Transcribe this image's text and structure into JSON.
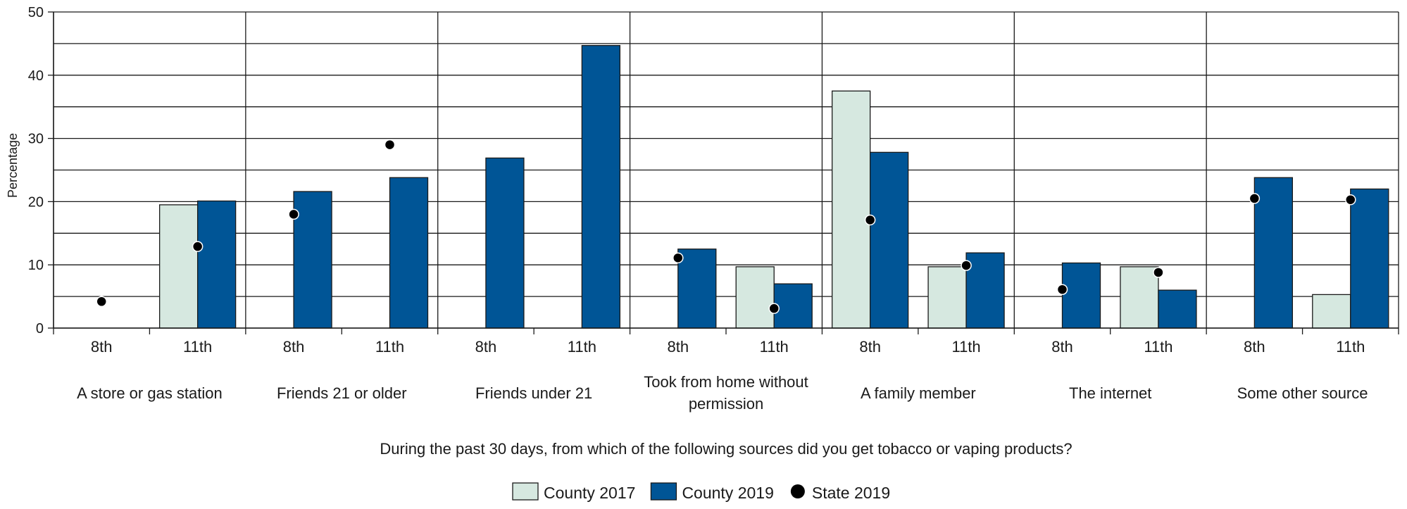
{
  "chart_data": {
    "type": "bar",
    "ylabel": "Percentage",
    "xlabel": "During the past 30 days, from which of the following sources did you get tobacco or vaping products?",
    "ylim": [
      0,
      50
    ],
    "yticks": [
      0,
      10,
      20,
      30,
      40,
      50
    ],
    "grid": true,
    "legend_position": "bottom-center",
    "groups": [
      "A store or gas station",
      "Friends 21 or older",
      "Friends under 21",
      "Took from home without permission",
      "A family member",
      "The internet",
      "Some other source"
    ],
    "subcategories": [
      "8th",
      "11th"
    ],
    "series": [
      {
        "name": "County 2017",
        "kind": "bar",
        "color": "#d6e8e0",
        "values": [
          [
            null,
            19.5
          ],
          [
            null,
            null
          ],
          [
            null,
            null
          ],
          [
            null,
            9.7
          ],
          [
            37.5,
            9.7
          ],
          [
            null,
            9.7
          ],
          [
            null,
            5.3
          ]
        ]
      },
      {
        "name": "County 2019",
        "kind": "bar",
        "color": "#005596",
        "values": [
          [
            null,
            20.1
          ],
          [
            21.6,
            23.8
          ],
          [
            26.9,
            44.7
          ],
          [
            12.5,
            7.0
          ],
          [
            27.8,
            11.9
          ],
          [
            10.3,
            6.0
          ],
          [
            23.8,
            22.0
          ]
        ]
      },
      {
        "name": "State 2019",
        "kind": "point",
        "color": "#000000",
        "values": [
          [
            4.2,
            12.9
          ],
          [
            18.0,
            29.0
          ],
          [
            null,
            null
          ],
          [
            11.1,
            3.1
          ],
          [
            17.1,
            9.9
          ],
          [
            6.1,
            8.8
          ],
          [
            20.5,
            20.3
          ]
        ]
      }
    ]
  }
}
